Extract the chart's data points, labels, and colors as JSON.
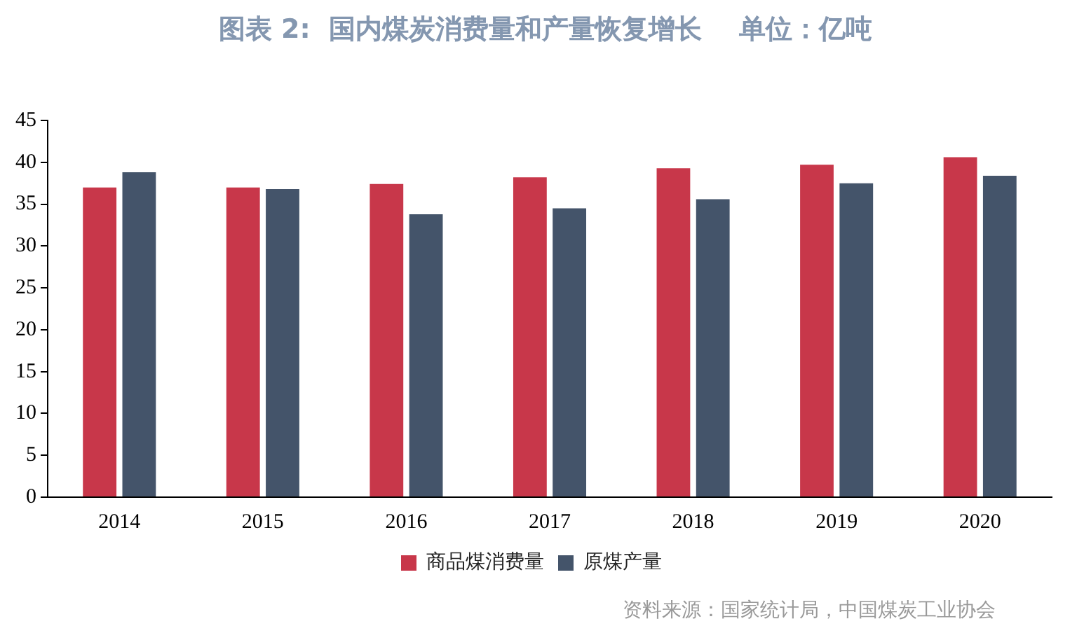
{
  "chart_data": {
    "type": "bar",
    "title": "图表 2:  国内煤炭消费量和产量恢复增长    单位：亿吨",
    "categories": [
      "2014",
      "2015",
      "2016",
      "2017",
      "2018",
      "2019",
      "2020"
    ],
    "series": [
      {
        "name": "商品煤消费量",
        "color": "#c8374a",
        "values": [
          37.0,
          37.0,
          37.4,
          38.2,
          39.3,
          39.7,
          40.6
        ]
      },
      {
        "name": "原煤产量",
        "color": "#44546a",
        "values": [
          38.8,
          36.8,
          33.8,
          34.5,
          35.6,
          37.5,
          38.4
        ]
      }
    ],
    "ylim": [
      0,
      45
    ],
    "yticks": [
      0,
      5,
      10,
      15,
      20,
      25,
      30,
      35,
      40,
      45
    ],
    "grid": false,
    "legend": "bottom",
    "annotations": [
      "资料来源：国家统计局，中国煤炭工业协会"
    ]
  }
}
